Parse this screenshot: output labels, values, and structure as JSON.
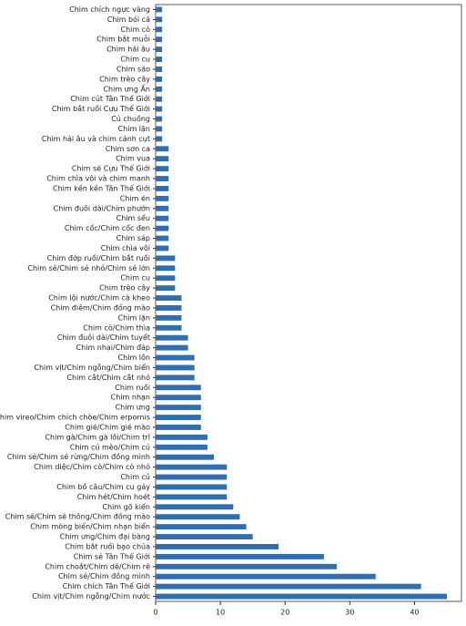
{
  "chart_data": {
    "type": "barh",
    "categories": [
      "Chim chích ngực vàng",
      "Chim bói cá",
      "Chim cò",
      "Chim bắt muỗi",
      "Chim hải âu",
      "Chim cu",
      "Chim sáo",
      "Chim trèo cây",
      "Chim ưng Ấn",
      "Chim cút Tân Thế Giới",
      "Chim bắt ruồi Cựu Thế Giới",
      "Cú chuồng",
      "Chim lặn",
      "Chim hải âu và chim cánh cụt",
      "Chim sơn ca",
      "Chim vua",
      "Chim sẻ Cựu Thế Giới",
      "Chim chìa vôi và chim manh",
      "Chim kền kền Tân Thế Giới",
      "Chim én",
      "Chim đuôi dài/Chim phướn",
      "Chim sếu",
      "Chim cốc/Chim cốc đen",
      "Chim sáp",
      "Chim chìa vôi",
      "Chim đớp ruồi/Chim bắt ruồi",
      "Chim sẻ/Chim sẻ nhỏ/Chim sẻ lớn",
      "Chim cu",
      "Chim trèo cây",
      "Chim lội nước/Chim cà kheo",
      "Chim điêm/Chim đồng mào",
      "Chim lặn",
      "Chim cò/Chim thìa",
      "Chim đuôi dài/Chim tuyết",
      "Chim nhại/Chim đáp",
      "Chim lôn",
      "Chim vịt/Chim ngỗng/Chim biển",
      "Chim cắt/Chim cắt nhỏ",
      "Chim ruồi",
      "Chim nhạn",
      "Chim ưng",
      "Chim vireo/Chim chích chòe/Chim erpornis",
      "Chim giẻ/Chim giẻ mào",
      "Chim gà/Chim gà lôi/Chim trĩ",
      "Chim cú mèo/Chim cú",
      "Chim sẻ/Chim sẻ rừng/Chim đồng mình",
      "Chim diệc/Chim cò/Chim cò nhỏ",
      "Chim cú",
      "Chim bồ câu/Chim cu gáy",
      "Chim hét/Chim hoét",
      "Chim gõ kiến",
      "Chim sẻ/Chim sẻ thông/Chim đồng mào",
      "Chim mòng biển/Chim nhạn biển",
      "Chim ưng/Chim đại bàng",
      "Chim bắt ruồi bạo chúa",
      "Chim sẻ Tân Thế Giới",
      "Chim choắt/Chim dẽ/Chim rẽ",
      "Chim sẻ/Chim đồng mình",
      "Chim chích Tân Thế Giới",
      "Chim vịt/Chim ngỗng/Chim nước"
    ],
    "values": [
      1,
      1,
      1,
      1,
      1,
      1,
      1,
      1,
      1,
      1,
      1,
      1,
      1,
      1,
      2,
      2,
      2,
      2,
      2,
      2,
      2,
      2,
      2,
      2,
      2,
      3,
      3,
      3,
      3,
      4,
      4,
      4,
      4,
      5,
      5,
      6,
      6,
      6,
      7,
      7,
      7,
      7,
      7,
      8,
      8,
      9,
      11,
      11,
      11,
      11,
      12,
      13,
      14,
      15,
      19,
      26,
      28,
      34,
      41,
      45
    ],
    "color": "#2f6fae",
    "xlim": [
      0,
      47.25
    ],
    "xticks": [
      0,
      10,
      20,
      30,
      40
    ]
  }
}
